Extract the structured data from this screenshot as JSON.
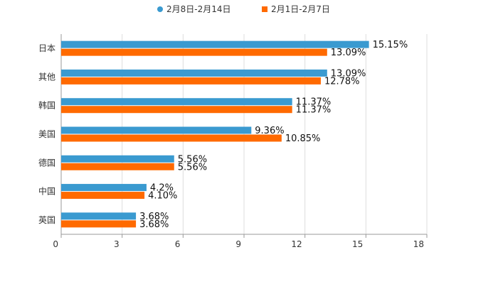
{
  "chart_data": {
    "type": "bar",
    "orientation": "horizontal",
    "categories": [
      "日本",
      "其他",
      "韩国",
      "美国",
      "德国",
      "中国",
      "英国"
    ],
    "series": [
      {
        "name": "2月8日-2月14日",
        "color": "#3a9ad0",
        "values": [
          15.15,
          13.09,
          11.37,
          9.36,
          5.56,
          4.2,
          3.68
        ],
        "labels": [
          "15.15%",
          "13.09%",
          "11.37%",
          "9.36%",
          "5.56%",
          "4.2%",
          "3.68%"
        ]
      },
      {
        "name": "2月1日-2月7日",
        "color": "#ff6a00",
        "values": [
          13.09,
          12.78,
          11.37,
          10.85,
          5.56,
          4.1,
          3.68
        ],
        "labels": [
          "13.09%",
          "12.78%",
          "11.37%",
          "10.85%",
          "5.56%",
          "4.10%",
          "3.68%"
        ]
      }
    ],
    "xlim": [
      0,
      18
    ],
    "x_ticks": [
      "0",
      "3",
      "6",
      "9",
      "12",
      "15",
      "18"
    ],
    "xlabel": "",
    "ylabel": "",
    "title": "",
    "legend_position": "top-center",
    "grid": true
  }
}
